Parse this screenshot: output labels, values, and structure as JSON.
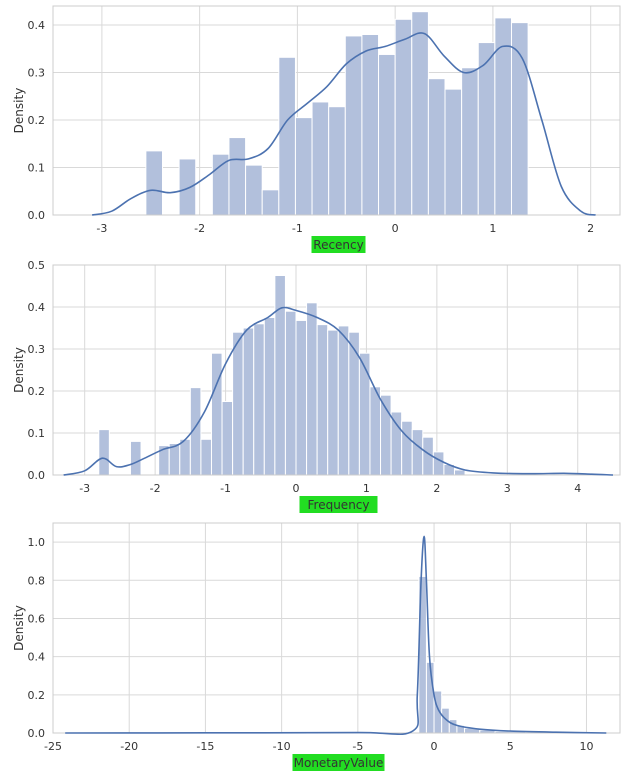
{
  "chart_data": [
    {
      "type": "histogram-kde",
      "xlabel": "Recency",
      "ylabel": "Density",
      "xlim": [
        -3.5,
        2.3
      ],
      "ylim": [
        0,
        0.44
      ],
      "xticks": [
        -3,
        -2,
        -1,
        0,
        1,
        2
      ],
      "yticks": [
        0.0,
        0.1,
        0.2,
        0.3,
        0.4
      ],
      "xticklabels": [
        "-3",
        "-2",
        "-1",
        "0",
        "1",
        "2"
      ],
      "yticklabels": [
        "0.0",
        "0.1",
        "0.2",
        "0.3",
        "0.4"
      ],
      "bins": [
        [
          -2.55,
          -2.38,
          0.135
        ],
        [
          -2.38,
          -2.21,
          0
        ],
        [
          -2.21,
          -2.04,
          0.118
        ],
        [
          -2.04,
          -1.87,
          0
        ],
        [
          -1.87,
          -1.7,
          0.128
        ],
        [
          -1.7,
          -1.53,
          0.163
        ],
        [
          -1.53,
          -1.36,
          0.105
        ],
        [
          -1.36,
          -1.19,
          0.053
        ],
        [
          -1.19,
          -1.02,
          0.332
        ],
        [
          -1.02,
          -0.85,
          0.205
        ],
        [
          -0.85,
          -0.68,
          0.238
        ],
        [
          -0.68,
          -0.51,
          0.228
        ],
        [
          -0.51,
          -0.34,
          0.377
        ],
        [
          -0.34,
          -0.17,
          0.38
        ],
        [
          -0.17,
          0.0,
          0.338
        ],
        [
          0.0,
          0.17,
          0.412
        ],
        [
          0.17,
          0.34,
          0.428
        ],
        [
          0.34,
          0.51,
          0.287
        ],
        [
          0.51,
          0.68,
          0.265
        ],
        [
          0.68,
          0.85,
          0.31
        ],
        [
          0.85,
          1.02,
          0.363
        ],
        [
          1.02,
          1.19,
          0.415
        ],
        [
          1.19,
          1.36,
          0.405
        ],
        [
          1.36,
          1.5,
          0.0
        ]
      ],
      "kde": [
        [
          -3.1,
          0.0
        ],
        [
          -2.9,
          0.008
        ],
        [
          -2.7,
          0.035
        ],
        [
          -2.5,
          0.052
        ],
        [
          -2.3,
          0.047
        ],
        [
          -2.1,
          0.058
        ],
        [
          -1.9,
          0.085
        ],
        [
          -1.7,
          0.115
        ],
        [
          -1.5,
          0.118
        ],
        [
          -1.3,
          0.14
        ],
        [
          -1.1,
          0.2
        ],
        [
          -0.9,
          0.235
        ],
        [
          -0.7,
          0.27
        ],
        [
          -0.5,
          0.318
        ],
        [
          -0.3,
          0.345
        ],
        [
          -0.1,
          0.355
        ],
        [
          0.1,
          0.37
        ],
        [
          0.3,
          0.382
        ],
        [
          0.5,
          0.335
        ],
        [
          0.7,
          0.3
        ],
        [
          0.9,
          0.315
        ],
        [
          1.1,
          0.355
        ],
        [
          1.3,
          0.33
        ],
        [
          1.5,
          0.2
        ],
        [
          1.7,
          0.06
        ],
        [
          1.9,
          0.008
        ],
        [
          2.05,
          0.0
        ]
      ]
    },
    {
      "type": "histogram-kde",
      "xlabel": "Frequency",
      "ylabel": "Density",
      "xlim": [
        -3.45,
        4.6
      ],
      "ylim": [
        0,
        0.5
      ],
      "xticks": [
        -3,
        -2,
        -1,
        0,
        1,
        2,
        3,
        4
      ],
      "yticks": [
        0.0,
        0.1,
        0.2,
        0.3,
        0.4,
        0.5
      ],
      "xticklabels": [
        "-3",
        "-2",
        "-1",
        "0",
        "1",
        "2",
        "3",
        "4"
      ],
      "yticklabels": [
        "0.0",
        "0.1",
        "0.2",
        "0.3",
        "0.4",
        "0.5"
      ],
      "bins": [
        [
          -2.8,
          -2.65,
          0.108
        ],
        [
          -2.65,
          -2.35,
          0.0
        ],
        [
          -2.35,
          -2.2,
          0.08
        ],
        [
          -2.2,
          -2.05,
          0.0
        ],
        [
          -1.95,
          -1.8,
          0.07
        ],
        [
          -1.8,
          -1.65,
          0.075
        ],
        [
          -1.65,
          -1.5,
          0.085
        ],
        [
          -1.5,
          -1.35,
          0.208
        ],
        [
          -1.35,
          -1.2,
          0.085
        ],
        [
          -1.2,
          -1.05,
          0.29
        ],
        [
          -1.05,
          -0.9,
          0.175
        ],
        [
          -0.9,
          -0.75,
          0.34
        ],
        [
          -0.75,
          -0.6,
          0.35
        ],
        [
          -0.6,
          -0.45,
          0.36
        ],
        [
          -0.45,
          -0.3,
          0.375
        ],
        [
          -0.3,
          -0.15,
          0.475
        ],
        [
          -0.15,
          0.0,
          0.39
        ],
        [
          0.0,
          0.15,
          0.368
        ],
        [
          0.15,
          0.3,
          0.41
        ],
        [
          0.3,
          0.45,
          0.358
        ],
        [
          0.45,
          0.6,
          0.345
        ],
        [
          0.6,
          0.75,
          0.355
        ],
        [
          0.75,
          0.9,
          0.34
        ],
        [
          0.9,
          1.05,
          0.29
        ],
        [
          1.05,
          1.2,
          0.21
        ],
        [
          1.2,
          1.35,
          0.19
        ],
        [
          1.35,
          1.5,
          0.15
        ],
        [
          1.5,
          1.65,
          0.128
        ],
        [
          1.65,
          1.8,
          0.108
        ],
        [
          1.8,
          1.95,
          0.09
        ],
        [
          1.95,
          2.1,
          0.055
        ],
        [
          2.1,
          2.25,
          0.025
        ],
        [
          2.25,
          2.4,
          0.012
        ]
      ],
      "kde": [
        [
          -3.3,
          0.0
        ],
        [
          -3.0,
          0.01
        ],
        [
          -2.75,
          0.04
        ],
        [
          -2.55,
          0.02
        ],
        [
          -2.35,
          0.025
        ],
        [
          -2.15,
          0.04
        ],
        [
          -1.9,
          0.06
        ],
        [
          -1.6,
          0.08
        ],
        [
          -1.3,
          0.15
        ],
        [
          -1.0,
          0.265
        ],
        [
          -0.7,
          0.345
        ],
        [
          -0.4,
          0.375
        ],
        [
          -0.2,
          0.398
        ],
        [
          0.0,
          0.392
        ],
        [
          0.3,
          0.375
        ],
        [
          0.6,
          0.345
        ],
        [
          0.9,
          0.28
        ],
        [
          1.2,
          0.18
        ],
        [
          1.5,
          0.105
        ],
        [
          1.8,
          0.06
        ],
        [
          2.1,
          0.03
        ],
        [
          2.4,
          0.012
        ],
        [
          2.8,
          0.005
        ],
        [
          3.3,
          0.003
        ],
        [
          3.8,
          0.004
        ],
        [
          4.2,
          0.002
        ],
        [
          4.5,
          0.0
        ]
      ]
    },
    {
      "type": "histogram-kde",
      "xlabel": "MonetaryValue",
      "ylabel": "Density",
      "xlim": [
        -25,
        12.2
      ],
      "ylim": [
        0,
        1.1
      ],
      "xticks": [
        -25,
        -20,
        -15,
        -10,
        -5,
        0,
        5,
        10
      ],
      "yticks": [
        0.0,
        0.2,
        0.4,
        0.6,
        0.8,
        1.0
      ],
      "xticklabels": [
        "-25",
        "-20",
        "-15",
        "-10",
        "-5",
        "0",
        "5",
        "10"
      ],
      "yticklabels": [
        "0.0",
        "0.2",
        "0.4",
        "0.6",
        "0.8",
        "1.0"
      ],
      "bins": [
        [
          -1.0,
          -0.5,
          0.82
        ],
        [
          -0.5,
          0.0,
          0.37
        ],
        [
          0.0,
          0.5,
          0.22
        ],
        [
          0.5,
          1.0,
          0.13
        ],
        [
          1.0,
          1.5,
          0.07
        ],
        [
          1.5,
          2.0,
          0.04
        ],
        [
          2.0,
          3.0,
          0.025
        ],
        [
          3.0,
          4.0,
          0.015
        ],
        [
          4.0,
          6.0,
          0.008
        ],
        [
          6.0,
          9.0,
          0.004
        ]
      ],
      "kde": [
        [
          -24.2,
          0.0
        ],
        [
          -15,
          0.001
        ],
        [
          -5,
          0.002
        ],
        [
          -1.4,
          0.01
        ],
        [
          -1.1,
          0.2
        ],
        [
          -0.85,
          0.8
        ],
        [
          -0.65,
          1.03
        ],
        [
          -0.5,
          0.8
        ],
        [
          -0.3,
          0.4
        ],
        [
          0.0,
          0.2
        ],
        [
          0.3,
          0.12
        ],
        [
          0.8,
          0.07
        ],
        [
          1.5,
          0.04
        ],
        [
          3.0,
          0.02
        ],
        [
          5.0,
          0.01
        ],
        [
          8.0,
          0.004
        ],
        [
          11.3,
          0.0
        ]
      ]
    }
  ]
}
